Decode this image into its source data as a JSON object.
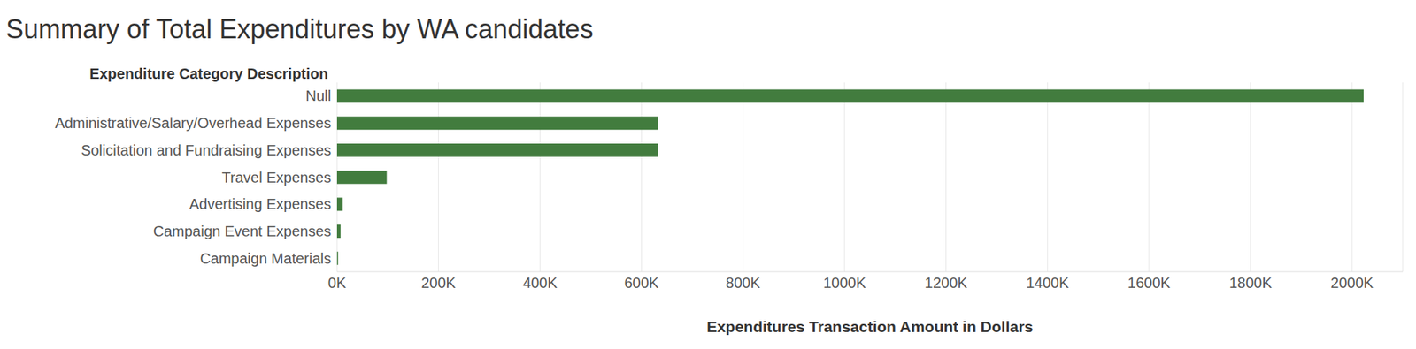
{
  "chart_data": {
    "type": "bar",
    "title": "Summary of Total Expenditures by WA candidates",
    "y_label": "Expenditure Category Description",
    "x_label": "Expenditures Transaction Amount in Dollars",
    "orientation": "horizontal",
    "categories": [
      "Null",
      "Administrative/Salary/Overhead Expenses",
      "Solicitation and Fundraising Expenses",
      "Travel Expenses",
      "Advertising Expenses",
      "Campaign Event Expenses",
      "Campaign Materials"
    ],
    "values": [
      2023000,
      632000,
      632000,
      98000,
      11000,
      7000,
      2000
    ],
    "color": "#427c3e",
    "xlim": [
      0,
      2100000
    ],
    "xticks": [
      {
        "value": 0,
        "label": "0K"
      },
      {
        "value": 200000,
        "label": "200K"
      },
      {
        "value": 400000,
        "label": "400K"
      },
      {
        "value": 600000,
        "label": "600K"
      },
      {
        "value": 800000,
        "label": "800K"
      },
      {
        "value": 1000000,
        "label": "1000K"
      },
      {
        "value": 1200000,
        "label": "1200K"
      },
      {
        "value": 1400000,
        "label": "1400K"
      },
      {
        "value": 1600000,
        "label": "1600K"
      },
      {
        "value": 1800000,
        "label": "1800K"
      },
      {
        "value": 2000000,
        "label": "2000K"
      }
    ],
    "grid": true
  }
}
